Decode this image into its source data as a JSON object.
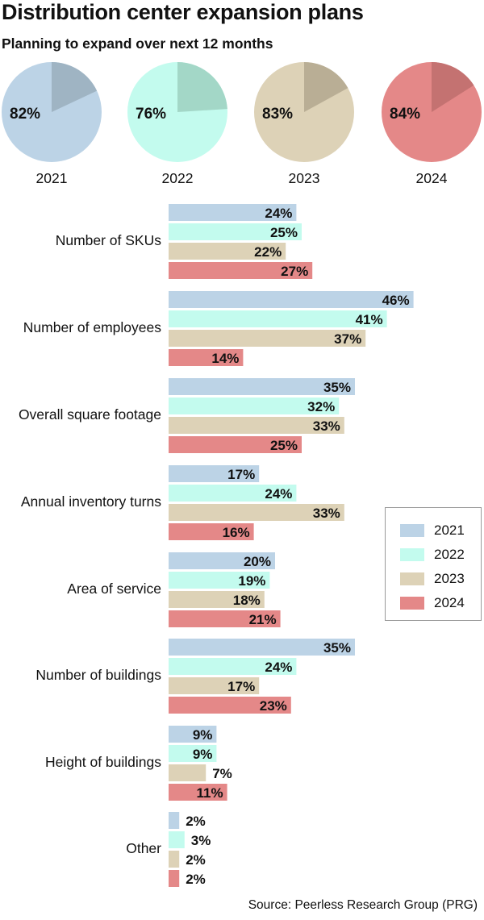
{
  "chart_data": [
    {
      "type": "pie",
      "title": "Distribution center expansion plans",
      "subtitle": "Planning to expand over next 12 months",
      "pies": [
        {
          "label": "2021",
          "value": 82,
          "value_label": "82%"
        },
        {
          "label": "2022",
          "value": 76,
          "value_label": "76%"
        },
        {
          "label": "2023",
          "value": 83,
          "value_label": "83%"
        },
        {
          "label": "2024",
          "value": 84,
          "value_label": "84%"
        }
      ]
    },
    {
      "type": "bar",
      "orientation": "horizontal",
      "categories": [
        "Number of SKUs",
        "Number of employees",
        "Overall square footage",
        "Annual inventory turns",
        "Area of service",
        "Number of buildings",
        "Height of buildings",
        "Other"
      ],
      "series": [
        {
          "name": "2021",
          "values": [
            24,
            46,
            35,
            17,
            20,
            35,
            9,
            2
          ]
        },
        {
          "name": "2022",
          "values": [
            25,
            41,
            32,
            24,
            19,
            24,
            9,
            3
          ]
        },
        {
          "name": "2023",
          "values": [
            22,
            37,
            33,
            33,
            18,
            17,
            7,
            2
          ]
        },
        {
          "name": "2024",
          "values": [
            27,
            14,
            25,
            16,
            21,
            23,
            11,
            2
          ]
        }
      ],
      "value_suffix": "%",
      "legend_position": "right"
    }
  ],
  "colors": {
    "2021": "#bcd3e6",
    "2022": "#c3fbee",
    "2023": "#ddd2b7",
    "2024": "#e48888",
    "2021_wedge": "#9fb4c3",
    "2022_wedge": "#a3d7c7",
    "2023_wedge": "#b9ae95",
    "2024_wedge": "#c47271"
  },
  "source": "Source: Peerless Research Group (PRG)"
}
